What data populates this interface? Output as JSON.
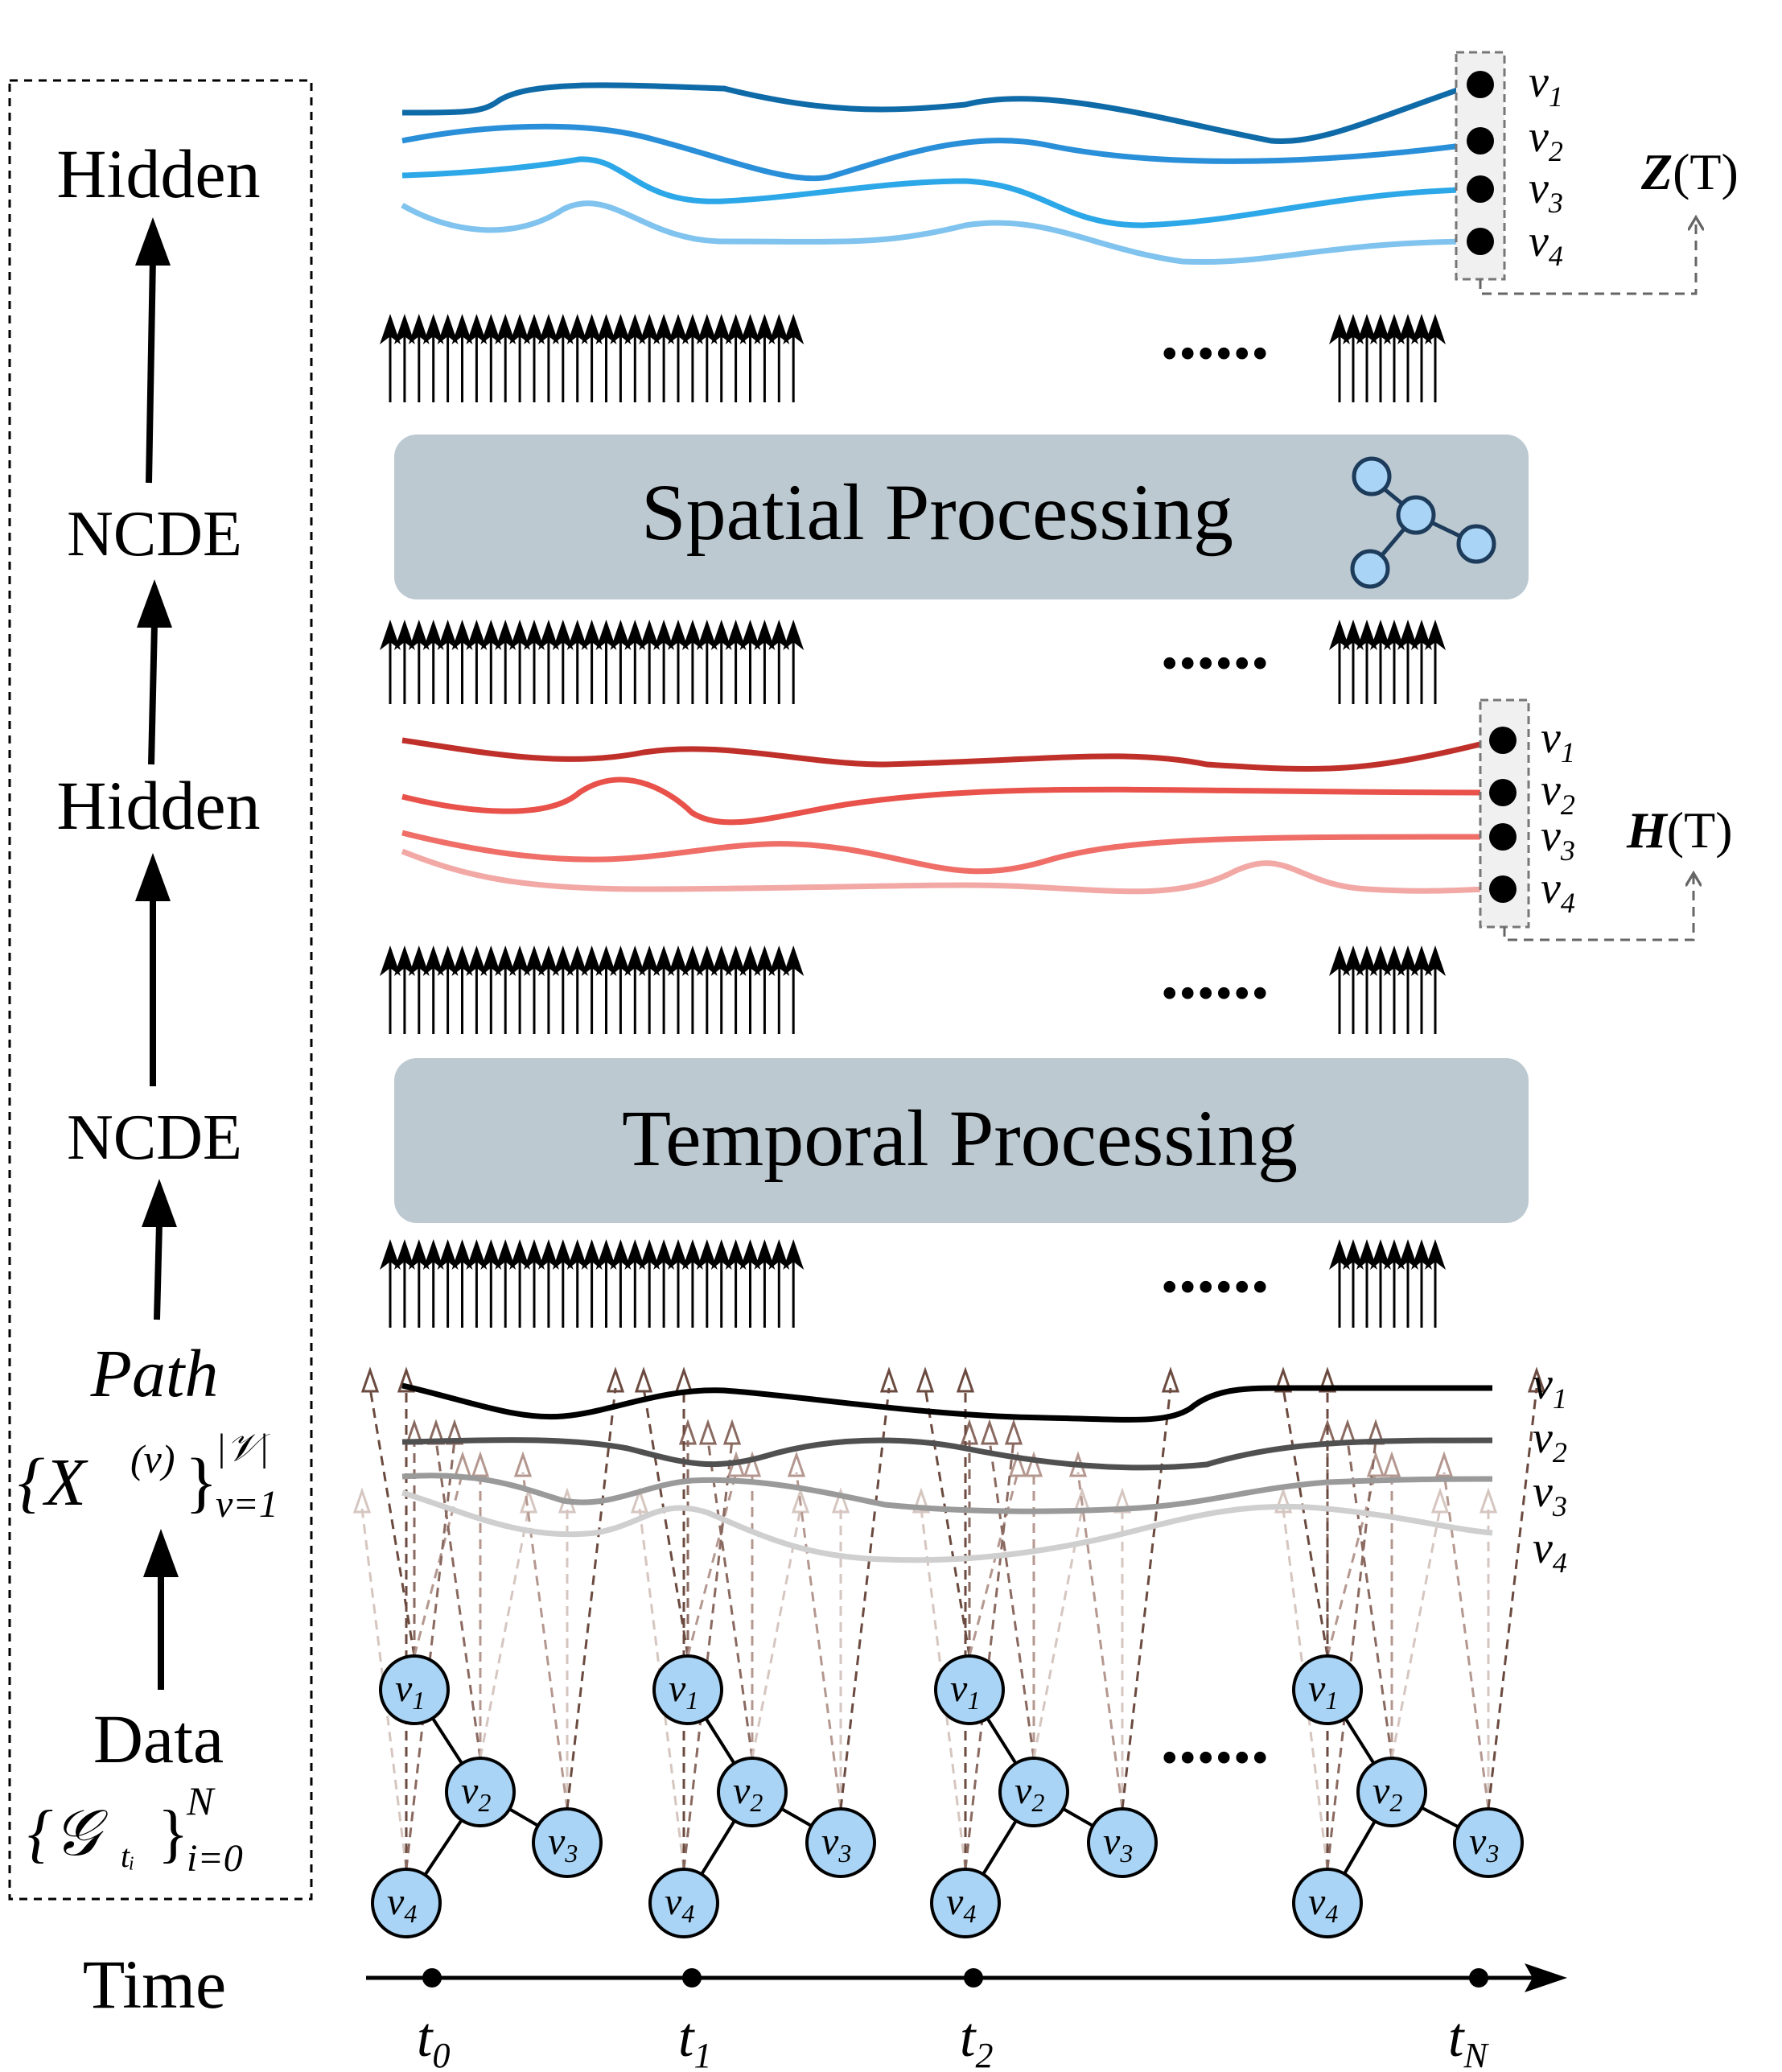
{
  "left_panel": {
    "labels": {
      "hidden_top": "Hidden",
      "ncde_top": "NCDE",
      "hidden_mid": "Hidden",
      "ncde_mid": "NCDE",
      "path_title": "Path",
      "path_sub": "{X",
      "path_sup": "(v)",
      "path_close": "}",
      "path_hi": "|𝒱|",
      "path_lo": "v=1",
      "data_title": "Data",
      "data_sub": "{𝒢",
      "data_subidx": "tᵢ",
      "data_close": "}",
      "data_hi": "N",
      "data_lo": "i=0",
      "time": "Time"
    }
  },
  "blocks": {
    "spatial": "Spatial Processing",
    "temporal": "Temporal Processing"
  },
  "ellipsis": "......",
  "hidden_z": {
    "label_sym": "Z",
    "label_arg": "(T)",
    "nodes": [
      "v",
      "v",
      "v",
      "v"
    ],
    "node_idx": [
      "1",
      "2",
      "3",
      "4"
    ],
    "colors": [
      "#0f6aa8",
      "#2a8fd9",
      "#2ca7e8",
      "#7fc3ee"
    ]
  },
  "hidden_h": {
    "label_sym": "H",
    "label_arg": "(T)",
    "nodes": [
      "v",
      "v",
      "v",
      "v"
    ],
    "node_idx": [
      "1",
      "2",
      "3",
      "4"
    ],
    "colors": [
      "#c0302a",
      "#e8524a",
      "#ef6f68",
      "#f2a9a6"
    ]
  },
  "path": {
    "nodes": [
      "v",
      "v",
      "v",
      "v"
    ],
    "node_idx": [
      "1",
      "2",
      "3",
      "4"
    ],
    "colors": [
      "#000000",
      "#505050",
      "#9a9a9a",
      "#cfcfcf"
    ]
  },
  "graphs": {
    "node_v": "v",
    "node_idx": [
      "1",
      "2",
      "3",
      "4"
    ],
    "node_fill": "#a9d4f5",
    "arrow_colors": [
      "#6b4a3f",
      "#8a6a60",
      "#b49890",
      "#d6c6c0"
    ]
  },
  "timeline": {
    "ticks": [
      {
        "sym": "t",
        "idx": "0"
      },
      {
        "sym": "t",
        "idx": "1"
      },
      {
        "sym": "t",
        "idx": "2"
      },
      {
        "sym": "t",
        "idx": "N"
      }
    ]
  },
  "block_color": "#bcc9d1"
}
